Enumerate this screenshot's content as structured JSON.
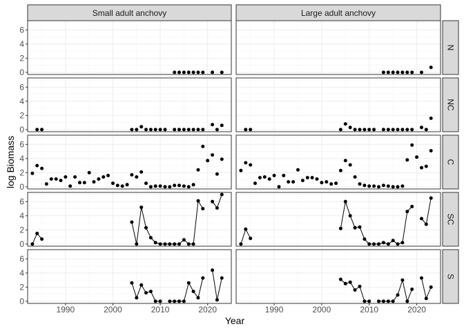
{
  "chart_data": {
    "type": "scatter",
    "style": "faceted line with points",
    "xlabel": "Year",
    "ylabel": "log Biomass",
    "xlim": [
      1982,
      2025
    ],
    "ylim": [
      -0.3,
      7.3
    ],
    "x_ticks": [
      1990,
      2000,
      2010,
      2020
    ],
    "y_ticks": [
      0,
      2,
      4,
      6
    ],
    "grid": true,
    "columns": [
      "Small adult anchovy",
      "Large adult anchovy"
    ],
    "rows": [
      "N",
      "NC",
      "C",
      "SC",
      "S"
    ],
    "panels": [
      {
        "col": "Small adult anchovy",
        "row": "N",
        "points": [
          [
            2013,
            0
          ],
          [
            2014,
            0
          ],
          [
            2015,
            0
          ],
          [
            2016,
            0
          ],
          [
            2017,
            0
          ],
          [
            2018,
            0
          ],
          [
            2019,
            0
          ],
          [
            2021,
            0
          ],
          [
            2023,
            0
          ]
        ]
      },
      {
        "col": "Large adult anchovy",
        "row": "N",
        "points": [
          [
            2013,
            0
          ],
          [
            2014,
            0
          ],
          [
            2015,
            0
          ],
          [
            2016,
            0
          ],
          [
            2017,
            0
          ],
          [
            2018,
            0
          ],
          [
            2019,
            0
          ],
          [
            2021,
            0
          ],
          [
            2023,
            0.7
          ]
        ]
      },
      {
        "col": "Small adult anchovy",
        "row": "NC",
        "points": [
          [
            1984,
            0
          ],
          [
            1985,
            0
          ],
          [
            2004,
            0
          ],
          [
            2005,
            0
          ],
          [
            2006,
            0.4
          ],
          [
            2007,
            0
          ],
          [
            2008,
            0
          ],
          [
            2009,
            0
          ],
          [
            2010,
            0
          ],
          [
            2011,
            0
          ],
          [
            2013,
            0
          ],
          [
            2014,
            0
          ],
          [
            2015,
            0
          ],
          [
            2016,
            0
          ],
          [
            2017,
            0
          ],
          [
            2018,
            0
          ],
          [
            2019,
            0
          ],
          [
            2021,
            0.7
          ],
          [
            2022,
            0
          ],
          [
            2023,
            0.6
          ]
        ]
      },
      {
        "col": "Large adult anchovy",
        "row": "NC",
        "points": [
          [
            1984,
            0
          ],
          [
            1985,
            0
          ],
          [
            2004,
            0
          ],
          [
            2005,
            0.8
          ],
          [
            2006,
            0.3
          ],
          [
            2007,
            0
          ],
          [
            2008,
            0
          ],
          [
            2009,
            0
          ],
          [
            2010,
            0
          ],
          [
            2011,
            0
          ],
          [
            2013,
            0
          ],
          [
            2014,
            0
          ],
          [
            2015,
            0
          ],
          [
            2016,
            0
          ],
          [
            2017,
            0
          ],
          [
            2018,
            0
          ],
          [
            2019,
            0
          ],
          [
            2021,
            0.3
          ],
          [
            2022,
            0
          ],
          [
            2023,
            1.6
          ]
        ]
      },
      {
        "col": "Small adult anchovy",
        "row": "C",
        "points": [
          [
            1983,
            1.9
          ],
          [
            1984,
            3
          ],
          [
            1985,
            2.6
          ],
          [
            1986,
            0.4
          ],
          [
            1987,
            1.1
          ],
          [
            1988,
            1.1
          ],
          [
            1989,
            0.9
          ],
          [
            1990,
            1.4
          ],
          [
            1991,
            0.1
          ],
          [
            1992,
            1.4
          ],
          [
            1993,
            0.6
          ],
          [
            1994,
            0.6
          ],
          [
            1995,
            2
          ],
          [
            1996,
            0.7
          ],
          [
            1997,
            1.1
          ],
          [
            1998,
            1.4
          ],
          [
            1999,
            1.6
          ],
          [
            2000,
            0.5
          ],
          [
            2001,
            0.2
          ],
          [
            2002,
            0.1
          ],
          [
            2003,
            0.3
          ],
          [
            2004,
            1.7
          ],
          [
            2005,
            1.4
          ],
          [
            2006,
            2.1
          ],
          [
            2007,
            0.5
          ],
          [
            2008,
            0
          ],
          [
            2009,
            0.1
          ],
          [
            2010,
            0.1
          ],
          [
            2011,
            0
          ],
          [
            2012,
            0
          ],
          [
            2013,
            0.2
          ],
          [
            2014,
            0.2
          ],
          [
            2015,
            0.1
          ],
          [
            2016,
            0
          ],
          [
            2017,
            0.3
          ],
          [
            2018,
            2.4
          ],
          [
            2019,
            5.7
          ],
          [
            2020,
            3.7
          ],
          [
            2021,
            4.5
          ],
          [
            2022,
            1.8
          ],
          [
            2023,
            3.9
          ]
        ]
      },
      {
        "col": "Large adult anchovy",
        "row": "C",
        "points": [
          [
            1983,
            2.3
          ],
          [
            1984,
            3.4
          ],
          [
            1985,
            3.1
          ],
          [
            1986,
            0.5
          ],
          [
            1987,
            1.3
          ],
          [
            1988,
            1.4
          ],
          [
            1989,
            1.1
          ],
          [
            1990,
            1.6
          ],
          [
            1991,
            0
          ],
          [
            1992,
            1.6
          ],
          [
            1993,
            0.7
          ],
          [
            1994,
            0.7
          ],
          [
            1995,
            2.4
          ],
          [
            1996,
            0.9
          ],
          [
            1997,
            1.3
          ],
          [
            1998,
            1.3
          ],
          [
            1999,
            1.1
          ],
          [
            2000,
            0.6
          ],
          [
            2001,
            0.7
          ],
          [
            2002,
            0.4
          ],
          [
            2003,
            0.5
          ],
          [
            2004,
            2.3
          ],
          [
            2005,
            3.7
          ],
          [
            2006,
            3.1
          ],
          [
            2007,
            1.4
          ],
          [
            2008,
            0.4
          ],
          [
            2009,
            0.2
          ],
          [
            2010,
            0.1
          ],
          [
            2011,
            0.1
          ],
          [
            2012,
            0
          ],
          [
            2013,
            0.2
          ],
          [
            2014,
            0.1
          ],
          [
            2015,
            0
          ],
          [
            2016,
            0
          ],
          [
            2017,
            0.1
          ],
          [
            2018,
            3.8
          ],
          [
            2019,
            5.9
          ],
          [
            2020,
            4.2
          ],
          [
            2021,
            2.7
          ],
          [
            2022,
            2.9
          ],
          [
            2023,
            5.1
          ]
        ]
      },
      {
        "col": "Small adult anchovy",
        "row": "SC",
        "segments": [
          [
            [
              1983,
              0
            ],
            [
              1984,
              1.5
            ],
            [
              1985,
              0.7
            ]
          ],
          [
            [
              2004,
              3.1
            ],
            [
              2005,
              0
            ],
            [
              2006,
              5.2
            ],
            [
              2007,
              2.3
            ],
            [
              2008,
              0.9
            ],
            [
              2009,
              0.2
            ],
            [
              2010,
              0
            ],
            [
              2011,
              0
            ],
            [
              2012,
              0
            ],
            [
              2013,
              0
            ],
            [
              2014,
              0
            ],
            [
              2015,
              0.6
            ],
            [
              2016,
              0
            ],
            [
              2017,
              0
            ],
            [
              2018,
              6.1
            ],
            [
              2019,
              5
            ]
          ],
          [
            [
              2021,
              6
            ],
            [
              2022,
              5.1
            ],
            [
              2023,
              7
            ]
          ]
        ]
      },
      {
        "col": "Large adult anchovy",
        "row": "SC",
        "segments": [
          [
            [
              1983,
              0
            ],
            [
              1984,
              2.1
            ],
            [
              1985,
              0.8
            ]
          ],
          [
            [
              2004,
              2.2
            ],
            [
              2005,
              6
            ],
            [
              2006,
              4
            ],
            [
              2007,
              2.3
            ],
            [
              2008,
              2.4
            ],
            [
              2009,
              0.7
            ],
            [
              2010,
              0
            ],
            [
              2011,
              0
            ],
            [
              2012,
              0
            ],
            [
              2013,
              0.2
            ],
            [
              2014,
              0
            ],
            [
              2015,
              0.5
            ],
            [
              2016,
              0
            ],
            [
              2017,
              0.2
            ],
            [
              2018,
              4.6
            ],
            [
              2019,
              5.3
            ]
          ],
          [
            [
              2021,
              3.6
            ],
            [
              2022,
              2.8
            ],
            [
              2023,
              6.5
            ]
          ]
        ]
      },
      {
        "col": "Small adult anchovy",
        "row": "S",
        "segments": [
          [
            [
              2004,
              2.6
            ],
            [
              2005,
              0.5
            ],
            [
              2006,
              2.3
            ],
            [
              2007,
              1.2
            ],
            [
              2008,
              1.4
            ],
            [
              2009,
              0
            ],
            [
              2010,
              0
            ]
          ],
          [
            [
              2012,
              0
            ],
            [
              2013,
              0
            ],
            [
              2014,
              0
            ],
            [
              2015,
              0
            ],
            [
              2016,
              2.6
            ],
            [
              2017,
              1.4
            ],
            [
              2018,
              0.5
            ],
            [
              2019,
              3.3
            ]
          ],
          [
            [
              2021,
              4.4
            ],
            [
              2022,
              0.2
            ],
            [
              2023,
              3.3
            ]
          ]
        ]
      },
      {
        "col": "Large adult anchovy",
        "row": "S",
        "segments": [
          [
            [
              2004,
              3.1
            ],
            [
              2005,
              2.5
            ],
            [
              2006,
              2.7
            ],
            [
              2007,
              1.6
            ],
            [
              2008,
              2.1
            ],
            [
              2009,
              0
            ],
            [
              2010,
              0
            ]
          ],
          [
            [
              2012,
              0
            ],
            [
              2013,
              0
            ],
            [
              2014,
              0
            ],
            [
              2015,
              0
            ],
            [
              2016,
              0.9
            ],
            [
              2017,
              3
            ],
            [
              2018,
              0
            ],
            [
              2019,
              1.7
            ]
          ],
          [
            [
              2021,
              3.3
            ],
            [
              2022,
              0.4
            ],
            [
              2023,
              2
            ]
          ]
        ]
      }
    ]
  }
}
